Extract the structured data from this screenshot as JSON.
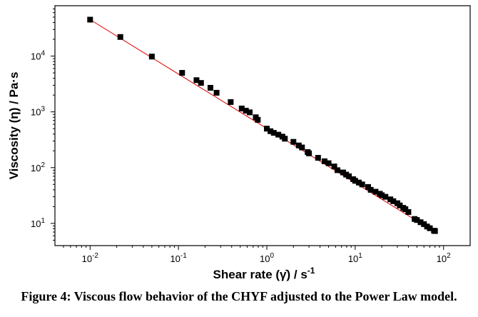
{
  "caption": "Figure 4: Viscous flow behavior of the CHYF adjusted to the Power Law model.",
  "chart_data": {
    "type": "scatter",
    "xlabel": "Shear rate (γ̇) / s",
    "xlabel_exponent": "-1",
    "ylabel": "Viscosity (η) / Pa·s",
    "xscale": "log",
    "yscale": "log",
    "xlim": [
      0.004,
      200
    ],
    "ylim": [
      4,
      80000
    ],
    "xticks": [
      {
        "value": 0.01,
        "base": "10",
        "exp": "-2"
      },
      {
        "value": 0.1,
        "base": "10",
        "exp": "-1"
      },
      {
        "value": 1,
        "base": "10",
        "exp": "0"
      },
      {
        "value": 10,
        "base": "10",
        "exp": "1"
      },
      {
        "value": 100,
        "base": "10",
        "exp": "2"
      }
    ],
    "yticks": [
      {
        "value": 10,
        "base": "10",
        "exp": "1"
      },
      {
        "value": 100,
        "base": "10",
        "exp": "2"
      },
      {
        "value": 1000,
        "base": "10",
        "exp": "3"
      },
      {
        "value": 10000,
        "base": "10",
        "exp": "4"
      }
    ],
    "grid": false,
    "marker_color": "#000000",
    "fit_color": "#e00000",
    "fit_line": {
      "model": "Power Law",
      "x": [
        0.01,
        80
      ],
      "y": [
        45000,
        7.0
      ]
    },
    "series": [
      {
        "x": [
          0.01,
          0.022,
          0.05,
          0.11,
          0.16,
          0.18,
          0.23,
          0.27,
          0.39,
          0.52,
          0.58,
          0.64,
          0.75,
          0.79,
          1.0,
          1.1,
          1.2,
          1.35,
          1.5,
          1.6,
          2.0,
          2.3,
          2.5,
          2.9,
          3.0,
          3.8,
          4.5,
          5.0,
          5.8,
          6.3,
          7.3,
          7.9,
          8.5,
          9.5,
          10.0,
          11.0,
          12.0,
          14.0,
          15.0,
          17.0,
          19.0,
          20.0,
          22.0,
          25.0,
          27.0,
          30.0,
          32.0,
          35.0,
          37.0,
          40.0,
          47.0,
          50.0,
          55.0,
          60.0,
          65.0,
          70.0,
          78.0,
          80.0
        ],
        "y": [
          45000,
          22000,
          9800,
          5000,
          3700,
          3300,
          2700,
          2200,
          1500,
          1150,
          1050,
          980,
          800,
          720,
          500,
          450,
          420,
          390,
          360,
          330,
          290,
          250,
          230,
          190,
          180,
          150,
          130,
          120,
          105,
          90,
          82,
          75,
          70,
          62,
          58,
          54,
          50,
          45,
          40,
          37,
          34,
          32,
          30,
          27,
          25,
          23,
          21,
          19,
          18,
          16,
          12,
          11.5,
          10.5,
          9.7,
          8.8,
          8.2,
          7.4,
          7.3
        ]
      }
    ]
  }
}
